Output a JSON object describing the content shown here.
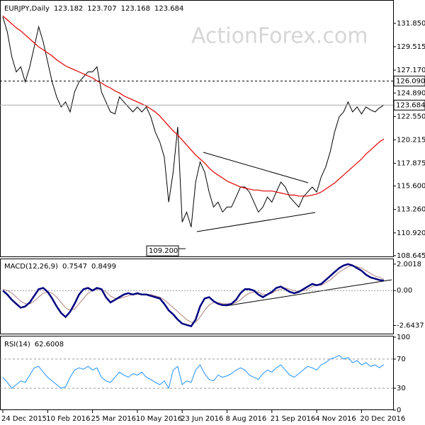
{
  "header": {
    "watermark": "ActionForex.com"
  },
  "chart_data": [
    {
      "type": "line",
      "title": "EURJPY,Daily",
      "ohlc": [
        123.182,
        123.707,
        123.168,
        123.684
      ],
      "categories": [
        "24 Dec 2015",
        null,
        null,
        null,
        null,
        null,
        null,
        null,
        null,
        null,
        "10 Feb 2016",
        null,
        null,
        null,
        null,
        null,
        null,
        null,
        null,
        null,
        "25 Mar 2016",
        null,
        null,
        null,
        null,
        null,
        null,
        null,
        null,
        null,
        "10 May 2016",
        null,
        null,
        null,
        null,
        null,
        null,
        null,
        null,
        null,
        "23 Jun 2016",
        null,
        null,
        null,
        null,
        null,
        null,
        null,
        null,
        null,
        "8 Aug 2016",
        null,
        null,
        null,
        null,
        null,
        null,
        null,
        null,
        null,
        "21 Sep 2016",
        null,
        null,
        null,
        null,
        null,
        null,
        null,
        null,
        null,
        "4 Nov 2016",
        null,
        null,
        null,
        null,
        null,
        null,
        null,
        null,
        null,
        "20 Dec 2016",
        null,
        null,
        null,
        null,
        null
      ],
      "series": [
        {
          "color": "#000000",
          "values": [
            132.5,
            131,
            128.5,
            127,
            127.5,
            126,
            127.5,
            129.5,
            131.5,
            130,
            128,
            126,
            124.5,
            123.5,
            124,
            123,
            125,
            126,
            126.5,
            127,
            127,
            127.5,
            125,
            124,
            123,
            122.8,
            124.5,
            124,
            123.5,
            123,
            123.5,
            123,
            123.5,
            122.5,
            121,
            120,
            118.5,
            114,
            117,
            121.5,
            112,
            113,
            111.5,
            116,
            118,
            117,
            115,
            113.5,
            114,
            113,
            113.5,
            113.5,
            114.5,
            115.5,
            115.5,
            115,
            114,
            113,
            113.5,
            114.5,
            114,
            115,
            116,
            115.5,
            114.5,
            114,
            113.5,
            114.5,
            115,
            115.5,
            115,
            116.5,
            117.5,
            119,
            121,
            122.5,
            123,
            124,
            123,
            123.5,
            122.8,
            123.5,
            123.2,
            123,
            123.4,
            123.7
          ]
        },
        {
          "color": "#e00000",
          "values": [
            132.6,
            132.2,
            131.8,
            131.4,
            131.1,
            130.7,
            130.3,
            129.9,
            129.5,
            129.2,
            128.9,
            128.6,
            128.2,
            127.9,
            127.6,
            127.4,
            127.2,
            127.0,
            126.8,
            126.6,
            126.4,
            126.1,
            125.9,
            125.6,
            125.4,
            125.1,
            124.9,
            124.6,
            124.4,
            124.2,
            124.0,
            123.8,
            123.6,
            123.3,
            123.0,
            122.6,
            122.1,
            121.6,
            121.1,
            120.7,
            120.2,
            119.7,
            119.2,
            118.7,
            118.3,
            117.9,
            117.4,
            117.0,
            116.7,
            116.4,
            116.1,
            115.9,
            115.7,
            115.5,
            115.4,
            115.3,
            115.2,
            115.2,
            115.1,
            115.1,
            115.1,
            115.0,
            114.9,
            114.8,
            114.7,
            114.7,
            114.6,
            114.6,
            114.6,
            114.7,
            114.8,
            115.0,
            115.3,
            115.6,
            115.9,
            116.3,
            116.7,
            117.1,
            117.5,
            117.9,
            118.3,
            118.8,
            119.2,
            119.6,
            120.0,
            120.3
          ]
        }
      ],
      "ylim": [
        108.57,
        134.04
      ],
      "yticks": [
        {
          "value": 131.85,
          "label": "131.850"
        },
        129.515,
        {
          "value": 127.17,
          "label": "127.170"
        },
        {
          "value": 124.89,
          "label": "124.890"
        },
        {
          "value": 122.55,
          "label": "122.550"
        },
        120.215,
        117.875,
        {
          "value": 115.6,
          "label": "115.600"
        },
        {
          "value": 113.26,
          "label": "113.260"
        },
        {
          "value": 110.92,
          "label": "110.920"
        },
        108.645
      ],
      "levels": [
        {
          "value": 126.09,
          "label": "126.090"
        }
      ],
      "last_price": {
        "value": 123.684,
        "label": "123.684"
      },
      "low": {
        "value": 109.2,
        "label": "109.200"
      }
    },
    {
      "type": "macd",
      "title": "MACD(12,26,9)",
      "readings": [
        0.7547,
        0.8499
      ],
      "series": [
        {
          "color": "#000080",
          "values": [
            0.0,
            -0.3,
            -0.7,
            -1.0,
            -1.3,
            -1.2,
            -0.9,
            -0.4,
            0.1,
            0.2,
            -0.1,
            -0.6,
            -1.2,
            -1.7,
            -2.0,
            -1.6,
            -1.0,
            -0.3,
            0.1,
            0.2,
            0.0,
            0.2,
            0.1,
            -0.5,
            -0.9,
            -0.7,
            -0.5,
            -0.3,
            -0.2,
            -0.3,
            -0.2,
            -0.3,
            -0.3,
            -0.4,
            -0.5,
            -0.6,
            -1.0,
            -1.5,
            -1.8,
            -2.2,
            -2.5,
            -2.6,
            -2.7,
            -2.2,
            -1.2,
            -0.6,
            -0.5,
            -0.8,
            -1.0,
            -1.1,
            -1.1,
            -1.0,
            -0.7,
            -0.2,
            0.1,
            0.1,
            0.0,
            -0.3,
            -0.5,
            -0.3,
            -0.1,
            0.2,
            0.3,
            0.1,
            -0.1,
            -0.2,
            -0.1,
            0.1,
            0.3,
            0.5,
            0.4,
            0.5,
            0.8,
            1.1,
            1.4,
            1.7,
            1.9,
            2.0,
            1.9,
            1.7,
            1.5,
            1.2,
            1.0,
            0.9,
            0.8,
            0.75
          ]
        },
        {
          "color": "#b08080",
          "values": [
            0.1,
            0.0,
            -0.2,
            -0.5,
            -0.8,
            -1.0,
            -1.0,
            -0.8,
            -0.5,
            -0.2,
            -0.1,
            -0.2,
            -0.5,
            -0.9,
            -1.3,
            -1.5,
            -1.4,
            -1.0,
            -0.6,
            -0.2,
            0.0,
            0.1,
            0.1,
            -0.1,
            -0.4,
            -0.6,
            -0.6,
            -0.5,
            -0.4,
            -0.3,
            -0.3,
            -0.3,
            -0.3,
            -0.3,
            -0.4,
            -0.5,
            -0.7,
            -1.0,
            -1.3,
            -1.6,
            -1.9,
            -2.2,
            -2.4,
            -2.4,
            -2.0,
            -1.5,
            -1.1,
            -0.9,
            -0.9,
            -1.0,
            -1.0,
            -1.0,
            -0.9,
            -0.7,
            -0.4,
            -0.2,
            -0.1,
            -0.1,
            -0.3,
            -0.3,
            -0.2,
            0.0,
            0.1,
            0.2,
            0.1,
            0.0,
            -0.1,
            0.0,
            0.1,
            0.3,
            0.4,
            0.4,
            0.6,
            0.8,
            1.1,
            1.4,
            1.6,
            1.8,
            1.9,
            1.8,
            1.7,
            1.5,
            1.3,
            1.1,
            1.0,
            0.85
          ]
        }
      ],
      "ylim": [
        -3.26,
        2.37
      ],
      "yticks": [
        2.0018,
        {
          "value": 0,
          "label": "0.00"
        },
        -2.6437
      ]
    },
    {
      "type": "rsi",
      "title": "RSI(14)",
      "readings": [
        62.6008
      ],
      "series": [
        {
          "color": "#1e90ff",
          "values": [
            45,
            38,
            30,
            35,
            40,
            38,
            48,
            58,
            60,
            52,
            45,
            40,
            35,
            30,
            32,
            45,
            55,
            58,
            56,
            60,
            55,
            58,
            45,
            40,
            38,
            45,
            52,
            48,
            45,
            50,
            48,
            52,
            45,
            42,
            38,
            35,
            40,
            30,
            55,
            60,
            35,
            40,
            38,
            55,
            62,
            50,
            42,
            40,
            48,
            45,
            47,
            50,
            55,
            58,
            55,
            48,
            45,
            42,
            50,
            55,
            52,
            58,
            62,
            55,
            48,
            45,
            50,
            55,
            60,
            58,
            55,
            62,
            65,
            70,
            72,
            75,
            70,
            72,
            65,
            68,
            62,
            65,
            60,
            62,
            58,
            62.6
          ]
        }
      ],
      "ylim": [
        0,
        100
      ],
      "yticks": [
        100,
        70,
        30,
        0
      ],
      "dashed_levels": [
        70,
        30
      ]
    }
  ]
}
